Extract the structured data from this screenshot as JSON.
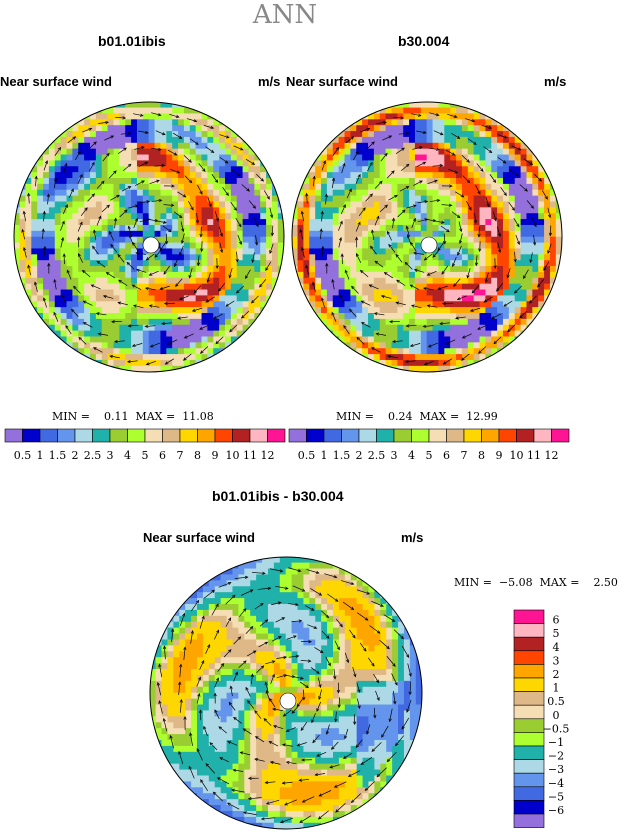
{
  "title": "ANN",
  "panels": [
    {
      "case": "b01.01ibis",
      "variable": "Near surface wind",
      "units": "m/s",
      "min_label": "MIN =",
      "min": "0.11",
      "max_label": "MAX =",
      "max": "11.08"
    },
    {
      "case": "b30.004",
      "variable": "Near surface wind",
      "units": "m/s",
      "min_label": "MIN =",
      "min": "0.24",
      "max_label": "MAX =",
      "max": "12.99"
    },
    {
      "case": "b01.01ibis - b30.004",
      "variable": "Near surface wind",
      "units": "m/s",
      "min_label": "MIN =",
      "min": "−5.08",
      "max_label": "MAX =",
      "max": "2.50"
    }
  ],
  "colorbar_top": {
    "labels": [
      "0.5",
      "1",
      "1.5",
      "2",
      "2.5",
      "3",
      "4",
      "5",
      "6",
      "7",
      "8",
      "9",
      "10",
      "11",
      "12"
    ],
    "colors": [
      "#9370db",
      "#0000cd",
      "#4169e1",
      "#6495ed",
      "#add8e6",
      "#20b2aa",
      "#9acd32",
      "#adff2f",
      "#f5deb3",
      "#deb887",
      "#ffd700",
      "#ffa500",
      "#ff4500",
      "#b22222",
      "#ffb6c1",
      "#ff1493"
    ]
  },
  "colorbar_diff": {
    "labels": [
      "6",
      "5",
      "4",
      "3",
      "2",
      "1",
      "0.5",
      "0",
      "−0.5",
      "−1",
      "−2",
      "−3",
      "−4",
      "−5",
      "−6"
    ],
    "colors": [
      "#ff1493",
      "#ffb6c1",
      "#b22222",
      "#ff4500",
      "#ffa500",
      "#ffd700",
      "#deb887",
      "#f5deb3",
      "#9acd32",
      "#adff2f",
      "#20b2aa",
      "#add8e6",
      "#6495ed",
      "#4169e1",
      "#0000cd",
      "#9370db"
    ]
  },
  "chart_data": [
    {
      "type": "heatmap",
      "title": "b01.01ibis",
      "subtitle": "Near surface wind",
      "units": "m/s",
      "min": 0.11,
      "max": 11.08,
      "levels": [
        0.5,
        1,
        1.5,
        2,
        2.5,
        3,
        4,
        5,
        6,
        7,
        8,
        9,
        10,
        11,
        12
      ]
    },
    {
      "type": "heatmap",
      "title": "b30.004",
      "subtitle": "Near surface wind",
      "units": "m/s",
      "min": 0.24,
      "max": 12.99,
      "levels": [
        0.5,
        1,
        1.5,
        2,
        2.5,
        3,
        4,
        5,
        6,
        7,
        8,
        9,
        10,
        11,
        12
      ]
    },
    {
      "type": "heatmap",
      "title": "b01.01ibis - b30.004",
      "subtitle": "Near surface wind",
      "units": "m/s",
      "min": -5.08,
      "max": 2.5,
      "levels": [
        -6,
        -5,
        -4,
        -3,
        -2,
        -1,
        -0.5,
        0,
        0.5,
        1,
        2,
        3,
        4,
        5,
        6
      ]
    }
  ]
}
